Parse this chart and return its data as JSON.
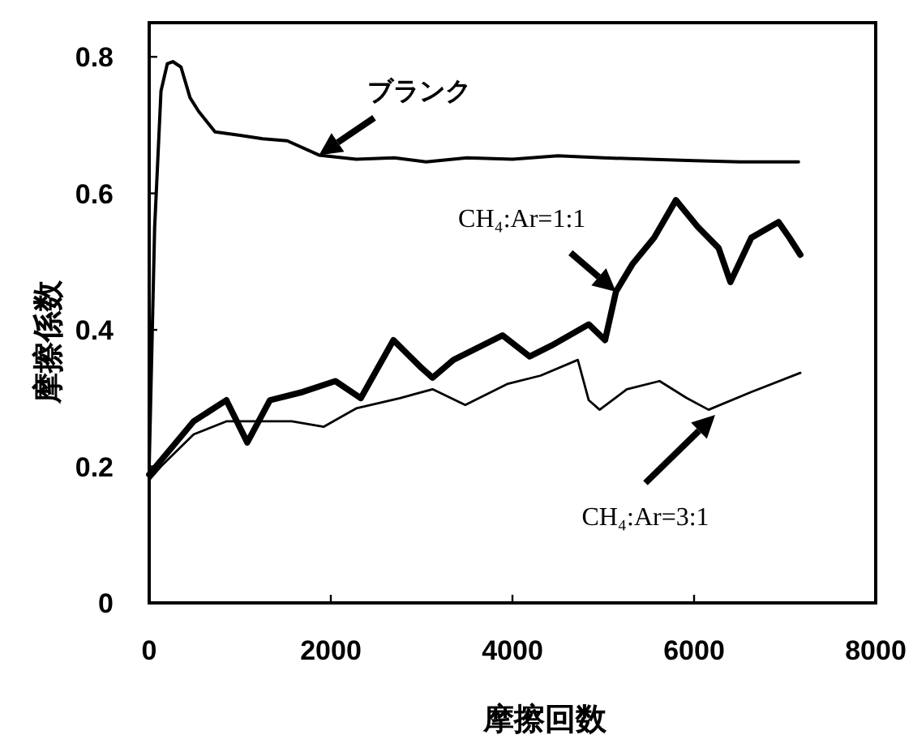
{
  "chart_data": {
    "type": "line",
    "xlabel": "摩擦回数",
    "ylabel": "摩擦係数",
    "xlim": [
      0,
      8000
    ],
    "ylim": [
      0,
      0.85
    ],
    "xticks": [
      0,
      2000,
      4000,
      6000,
      8000
    ],
    "yticks": [
      0,
      0.2,
      0.4,
      0.6,
      0.8
    ],
    "grid": false,
    "marker": "none",
    "line_style": "solid",
    "series": [
      {
        "color": "#000000",
        "x": [
          0,
          60,
          130,
          200,
          260,
          350,
          450,
          545,
          725,
          1000,
          1250,
          1520,
          1870,
          2280,
          2700,
          3050,
          3500,
          4000,
          4500,
          5000,
          5500,
          6000,
          6500,
          7150
        ],
        "values": [
          0.2,
          0.55,
          0.75,
          0.79,
          0.793,
          0.785,
          0.74,
          0.72,
          0.69,
          0.685,
          0.68,
          0.677,
          0.656,
          0.65,
          0.652,
          0.646,
          0.652,
          0.65,
          0.655,
          0.652,
          0.65,
          0.648,
          0.646,
          0.646
        ]
      },
      {
        "color": "#000000",
        "x": [
          0,
          490,
          850,
          1080,
          1330,
          1690,
          2050,
          2330,
          2690,
          3000,
          3120,
          3350,
          3890,
          4190,
          4430,
          4840,
          5020,
          5140,
          5320,
          5560,
          5800,
          6040,
          6270,
          6400,
          6630,
          6930,
          7050,
          7170
        ],
        "values": [
          0.188,
          0.266,
          0.297,
          0.235,
          0.297,
          0.309,
          0.325,
          0.3,
          0.385,
          0.344,
          0.33,
          0.356,
          0.392,
          0.361,
          0.377,
          0.408,
          0.385,
          0.456,
          0.496,
          0.535,
          0.59,
          0.551,
          0.52,
          0.47,
          0.535,
          0.558,
          0.535,
          0.51
        ]
      },
      {
        "color": "#000000",
        "x": [
          0,
          130,
          490,
          850,
          1570,
          1920,
          2280,
          2760,
          3120,
          3480,
          3950,
          4310,
          4720,
          4840,
          4960,
          5260,
          5620,
          5920,
          6160,
          6630,
          7170
        ],
        "values": [
          0.18,
          0.2,
          0.247,
          0.266,
          0.266,
          0.258,
          0.285,
          0.3,
          0.313,
          0.29,
          0.321,
          0.333,
          0.356,
          0.297,
          0.283,
          0.313,
          0.325,
          0.3,
          0.283,
          0.309,
          0.337
        ]
      }
    ],
    "annotations": [
      {
        "text": "ブランク",
        "x": 1870,
        "y": 0.656
      },
      {
        "text": "CH₄:Ar=1:1",
        "x": 5140,
        "y": 0.456
      },
      "CH₄:Ar=3:1"
    ]
  }
}
